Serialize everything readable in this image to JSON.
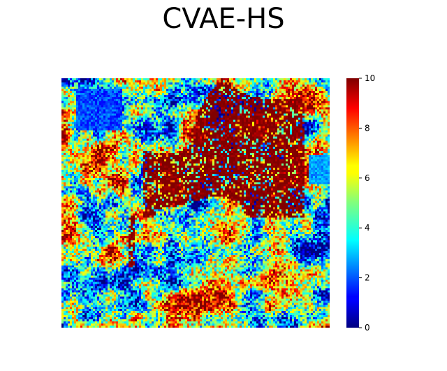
{
  "chart_data": {
    "type": "heatmap",
    "title": "CVAE-HS",
    "xlabel": "",
    "ylabel": "",
    "colormap": "jet",
    "grid": false,
    "axes_visible": false,
    "value_range": [
      0,
      10
    ],
    "grid_size": [
      128,
      120
    ],
    "colorbar": {
      "position": "right",
      "min": 0,
      "max": 10,
      "ticks": [
        "0",
        "2",
        "4",
        "6",
        "8",
        "10"
      ]
    },
    "regions": [
      {
        "description": "low-value region top-left",
        "x": [
          0.05,
          0.22
        ],
        "y": [
          0.04,
          0.2
        ],
        "value": 2.0
      },
      {
        "description": "high-value cluster upper-center",
        "x": [
          0.3,
          0.9
        ],
        "y": [
          0.0,
          0.55
        ],
        "value": 9.5
      },
      {
        "description": "high-value band center",
        "x": [
          0.25,
          0.55
        ],
        "y": [
          0.55,
          0.75
        ],
        "value": 9.0
      },
      {
        "description": "mixed mid-value background",
        "x": [
          0.0,
          1.0
        ],
        "y": [
          0.0,
          1.0
        ],
        "value": 5.0
      }
    ]
  }
}
